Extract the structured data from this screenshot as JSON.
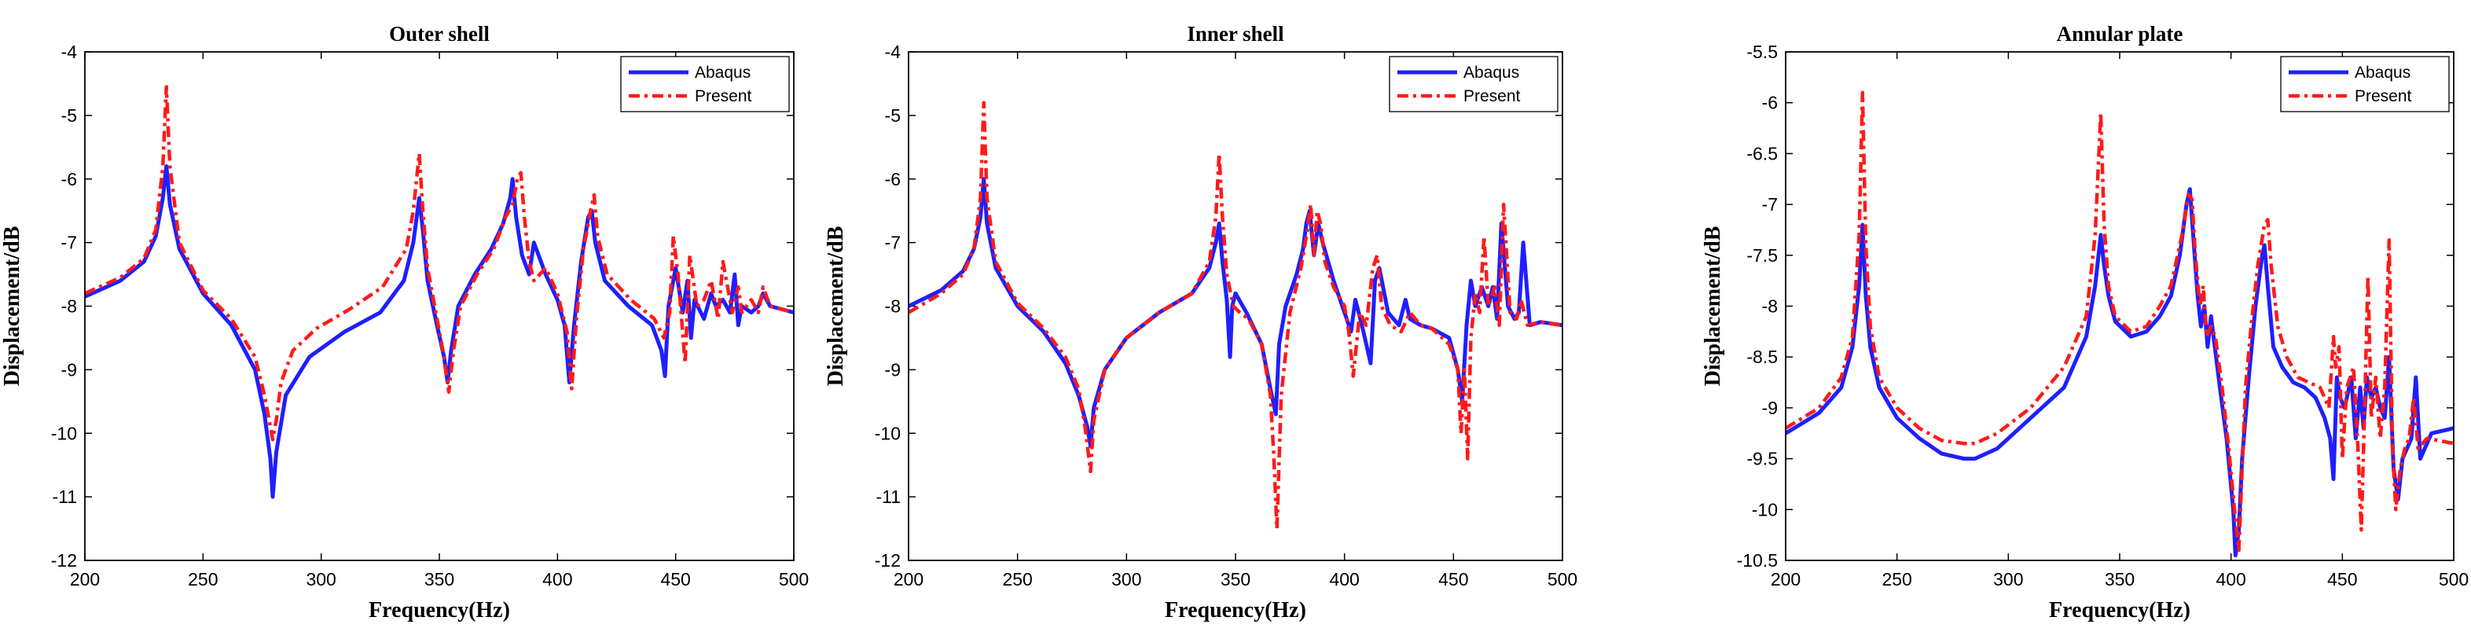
{
  "chart_data": [
    {
      "type": "line",
      "title": "Outer shell",
      "xlabel": "Frequency(Hz)",
      "ylabel": "Displacement/dB",
      "xlim": [
        200,
        500
      ],
      "ylim": [
        -12,
        -4
      ],
      "xticks": [
        200,
        250,
        300,
        350,
        400,
        450,
        500
      ],
      "yticks": [
        -4,
        -5,
        -6,
        -7,
        -8,
        -9,
        -10,
        -11,
        -12
      ],
      "legend_position": "top-right",
      "series": [
        {
          "name": "Abaqus",
          "color": "#1f1fff",
          "style": "solid",
          "x": [
            200,
            215,
            225,
            230,
            233,
            234.5,
            236,
            240,
            250,
            262,
            272,
            276,
            278.5,
            279.5,
            281,
            285,
            295,
            310,
            325,
            335,
            339,
            341.5,
            343,
            345,
            349,
            352,
            353.5,
            355,
            358,
            365,
            372,
            377,
            380,
            381,
            382.5,
            385,
            388,
            390,
            395,
            400,
            403,
            405,
            407,
            410,
            413,
            414.5,
            416,
            420,
            430,
            440,
            444,
            445.5,
            447,
            450,
            453,
            455,
            456.5,
            458,
            462,
            465,
            467,
            470,
            473,
            475,
            476.5,
            478,
            482,
            485,
            487,
            490,
            495,
            500
          ],
          "y": [
            -7.85,
            -7.6,
            -7.3,
            -6.9,
            -6.3,
            -5.8,
            -6.4,
            -7.1,
            -7.8,
            -8.3,
            -9.0,
            -9.7,
            -10.4,
            -11.0,
            -10.3,
            -9.4,
            -8.8,
            -8.4,
            -8.1,
            -7.6,
            -7.0,
            -6.3,
            -6.8,
            -7.6,
            -8.3,
            -8.8,
            -9.2,
            -8.7,
            -8.0,
            -7.5,
            -7.1,
            -6.7,
            -6.3,
            -6.0,
            -6.6,
            -7.2,
            -7.5,
            -7.0,
            -7.5,
            -7.9,
            -8.3,
            -9.2,
            -8.3,
            -7.3,
            -6.6,
            -6.5,
            -7.0,
            -7.6,
            -8.0,
            -8.3,
            -8.7,
            -9.1,
            -8.0,
            -7.4,
            -8.1,
            -7.6,
            -8.5,
            -7.9,
            -8.2,
            -7.8,
            -8.0,
            -7.9,
            -8.1,
            -7.5,
            -8.3,
            -8.0,
            -8.1,
            -8.0,
            -7.8,
            -8.0,
            -8.05,
            -8.1
          ]
        },
        {
          "name": "Present",
          "color": "#ff1a1a",
          "style": "dashdot",
          "x": [
            200,
            215,
            225,
            230,
            233,
            234.5,
            236,
            240,
            250,
            262,
            272,
            276,
            279.5,
            281,
            283,
            288,
            298,
            312,
            326,
            336,
            339,
            341.5,
            343,
            345,
            349,
            352,
            354,
            356,
            359,
            366,
            373,
            378,
            381,
            383,
            384.5,
            386,
            388,
            390,
            395,
            400,
            404,
            406,
            408,
            411,
            414,
            415.5,
            417,
            421,
            431,
            441,
            445,
            447.5,
            449,
            451,
            454,
            456,
            457.5,
            459,
            462,
            465,
            468,
            470,
            474,
            476.5,
            478,
            482,
            485,
            487,
            490,
            495,
            500
          ],
          "y": [
            -7.8,
            -7.55,
            -7.25,
            -6.8,
            -5.8,
            -4.55,
            -5.8,
            -7.0,
            -7.75,
            -8.2,
            -8.8,
            -9.4,
            -10.1,
            -9.8,
            -9.2,
            -8.7,
            -8.35,
            -8.05,
            -7.7,
            -7.1,
            -6.5,
            -5.6,
            -6.5,
            -7.4,
            -8.2,
            -8.8,
            -9.35,
            -8.7,
            -8.0,
            -7.5,
            -7.1,
            -6.6,
            -6.4,
            -6.0,
            -5.9,
            -6.6,
            -7.3,
            -7.6,
            -7.4,
            -7.8,
            -8.4,
            -9.3,
            -8.2,
            -7.1,
            -6.5,
            -6.25,
            -6.9,
            -7.5,
            -7.9,
            -8.2,
            -8.5,
            -8.1,
            -6.9,
            -7.5,
            -8.9,
            -7.2,
            -7.6,
            -8.0,
            -7.9,
            -7.6,
            -8.2,
            -7.3,
            -8.1,
            -7.7,
            -8.1,
            -7.9,
            -8.1,
            -7.7,
            -8.0,
            -8.05,
            -8.1
          ]
        }
      ]
    },
    {
      "type": "line",
      "title": "Inner shell",
      "xlabel": "Frequency(Hz)",
      "ylabel": "Displacement/dB",
      "xlim": [
        200,
        500
      ],
      "ylim": [
        -12,
        -4
      ],
      "xticks": [
        200,
        250,
        300,
        350,
        400,
        450,
        500
      ],
      "yticks": [
        -4,
        -5,
        -6,
        -7,
        -8,
        -9,
        -10,
        -11,
        -12
      ],
      "legend_position": "top-right",
      "series": [
        {
          "name": "Abaqus",
          "color": "#1f1fff",
          "style": "solid",
          "x": [
            200,
            215,
            225,
            230,
            233,
            234.5,
            236,
            240,
            250,
            262,
            272,
            278,
            282,
            283.5,
            285,
            290,
            300,
            315,
            330,
            338,
            341,
            342.5,
            344,
            346,
            347.5,
            348.5,
            350,
            355,
            362,
            366,
            368.5,
            370,
            373,
            378,
            381,
            382.5,
            384,
            386,
            388,
            390,
            395,
            400,
            403,
            405,
            408,
            410,
            412,
            414,
            416,
            420,
            425,
            428,
            430,
            435,
            440,
            448,
            452,
            454,
            456,
            458,
            460,
            463,
            466,
            468,
            470,
            472,
            475,
            478,
            480,
            482,
            485,
            490,
            500
          ],
          "y": [
            -8.0,
            -7.75,
            -7.45,
            -7.1,
            -6.6,
            -6.0,
            -6.7,
            -7.4,
            -8.0,
            -8.4,
            -8.9,
            -9.4,
            -9.9,
            -10.2,
            -9.6,
            -9.0,
            -8.5,
            -8.1,
            -7.8,
            -7.4,
            -7.0,
            -6.7,
            -7.3,
            -7.9,
            -8.8,
            -8.0,
            -7.8,
            -8.1,
            -8.6,
            -9.3,
            -9.7,
            -8.6,
            -8.0,
            -7.5,
            -7.1,
            -6.7,
            -6.5,
            -7.2,
            -6.7,
            -7.0,
            -7.6,
            -8.1,
            -8.4,
            -7.9,
            -8.3,
            -8.6,
            -8.9,
            -7.6,
            -7.4,
            -8.1,
            -8.3,
            -7.9,
            -8.2,
            -8.3,
            -8.35,
            -8.5,
            -9.0,
            -9.5,
            -8.3,
            -7.6,
            -8.0,
            -7.7,
            -8.0,
            -7.7,
            -8.2,
            -6.7,
            -8.0,
            -8.2,
            -8.1,
            -7.0,
            -8.3,
            -8.25,
            -8.3
          ]
        },
        {
          "name": "Present",
          "color": "#ff1a1a",
          "style": "dashdot",
          "x": [
            200,
            215,
            225,
            230,
            233,
            234.5,
            236,
            240,
            250,
            262,
            272,
            278,
            281,
            283.5,
            285,
            290,
            300,
            315,
            330,
            338,
            341,
            342.5,
            344,
            346,
            349,
            352,
            356,
            362,
            366,
            367.5,
            369,
            371,
            375,
            380,
            383,
            384.5,
            386,
            387.5,
            389,
            391,
            395,
            400,
            402,
            404,
            407,
            410,
            413,
            415,
            417,
            421,
            426,
            430,
            435,
            440,
            448,
            452,
            453.5,
            455,
            456.5,
            458,
            460,
            462,
            464,
            466,
            469,
            471,
            473,
            476,
            479,
            481,
            484,
            490,
            500
          ],
          "y": [
            -8.1,
            -7.8,
            -7.5,
            -7.1,
            -6.3,
            -4.8,
            -6.3,
            -7.3,
            -7.95,
            -8.35,
            -8.8,
            -9.3,
            -9.9,
            -10.6,
            -9.8,
            -9.0,
            -8.5,
            -8.1,
            -7.8,
            -7.3,
            -6.6,
            -5.6,
            -6.6,
            -7.5,
            -8.0,
            -8.1,
            -8.2,
            -8.6,
            -9.4,
            -10.3,
            -11.5,
            -9.4,
            -8.1,
            -7.4,
            -6.8,
            -6.4,
            -7.2,
            -6.5,
            -6.7,
            -7.3,
            -7.7,
            -8.0,
            -8.4,
            -9.1,
            -8.1,
            -8.3,
            -7.4,
            -7.2,
            -8.0,
            -8.3,
            -8.4,
            -8.1,
            -8.3,
            -8.35,
            -8.6,
            -9.0,
            -10.0,
            -9.0,
            -10.4,
            -8.5,
            -7.8,
            -8.1,
            -6.9,
            -8.0,
            -7.7,
            -8.3,
            -6.4,
            -8.1,
            -8.2,
            -7.9,
            -8.3,
            -8.25,
            -8.3
          ]
        }
      ]
    },
    {
      "type": "line",
      "title": "Annular plate",
      "xlabel": "Frequency(Hz)",
      "ylabel": "Displacement/dB",
      "xlim": [
        200,
        500
      ],
      "ylim": [
        -10.5,
        -5.5
      ],
      "xticks": [
        200,
        250,
        300,
        350,
        400,
        450,
        500
      ],
      "yticks": [
        -5.5,
        -6,
        -6.5,
        -7,
        -7.5,
        -8,
        -8.5,
        -9,
        -9.5,
        -10,
        -10.5
      ],
      "legend_position": "top-right",
      "series": [
        {
          "name": "Abaqus",
          "color": "#1f1fff",
          "style": "solid",
          "x": [
            200,
            215,
            225,
            230,
            233,
            234.5,
            236,
            238,
            242,
            250,
            260,
            270,
            280,
            285,
            295,
            310,
            325,
            335,
            339,
            341.5,
            343,
            345,
            348,
            355,
            362,
            368,
            373,
            377,
            380,
            381.5,
            383,
            385,
            386.5,
            388,
            389.5,
            391,
            395,
            398,
            401,
            402,
            403.5,
            405,
            408,
            411,
            414,
            415,
            416.5,
            419,
            423,
            428,
            433,
            438,
            442,
            444.5,
            446,
            447.5,
            449,
            451,
            454,
            456,
            458,
            459.5,
            461,
            463,
            465,
            467,
            469,
            471,
            473,
            475,
            477,
            479,
            481,
            483,
            485,
            490,
            500
          ],
          "y": [
            -9.25,
            -9.05,
            -8.8,
            -8.4,
            -7.8,
            -7.2,
            -7.9,
            -8.4,
            -8.8,
            -9.1,
            -9.3,
            -9.45,
            -9.5,
            -9.5,
            -9.4,
            -9.1,
            -8.8,
            -8.3,
            -7.8,
            -7.3,
            -7.6,
            -7.9,
            -8.15,
            -8.3,
            -8.25,
            -8.1,
            -7.9,
            -7.5,
            -7.0,
            -6.85,
            -7.3,
            -7.9,
            -8.2,
            -8.0,
            -8.4,
            -8.1,
            -8.8,
            -9.3,
            -10.0,
            -10.45,
            -10.2,
            -9.5,
            -8.7,
            -8.0,
            -7.5,
            -7.4,
            -7.8,
            -8.4,
            -8.6,
            -8.75,
            -8.8,
            -8.9,
            -9.1,
            -9.3,
            -9.7,
            -8.7,
            -8.9,
            -9.0,
            -8.7,
            -9.3,
            -8.8,
            -9.2,
            -8.7,
            -8.9,
            -8.8,
            -9.0,
            -9.1,
            -8.5,
            -9.6,
            -9.9,
            -9.5,
            -9.4,
            -9.3,
            -8.7,
            -9.5,
            -9.25,
            -9.2
          ]
        },
        {
          "name": "Present",
          "color": "#ff1a1a",
          "style": "dashdot",
          "x": [
            200,
            215,
            225,
            230,
            233,
            234.5,
            236,
            238,
            242,
            250,
            260,
            270,
            280,
            285,
            295,
            310,
            325,
            335,
            339,
            341.5,
            343,
            345,
            348,
            355,
            362,
            368,
            373,
            378,
            381,
            382.5,
            384,
            386,
            387.5,
            389,
            391,
            393,
            396,
            399,
            402,
            403.5,
            405,
            406.5,
            409,
            412,
            415,
            416.5,
            418,
            421,
            425,
            430,
            435,
            440,
            444,
            446,
            447,
            448.5,
            450,
            452,
            455,
            457,
            458.5,
            460,
            461.5,
            463,
            465,
            467,
            469,
            471,
            472.5,
            474,
            476,
            478,
            480,
            482,
            484,
            488,
            500
          ],
          "y": [
            -9.2,
            -9.0,
            -8.7,
            -8.3,
            -7.3,
            -5.9,
            -7.4,
            -8.2,
            -8.7,
            -9.0,
            -9.2,
            -9.32,
            -9.35,
            -9.35,
            -9.25,
            -9.0,
            -8.6,
            -8.1,
            -7.3,
            -6.1,
            -7.2,
            -7.8,
            -8.1,
            -8.25,
            -8.2,
            -8.0,
            -7.8,
            -7.3,
            -6.9,
            -6.95,
            -7.5,
            -8.0,
            -7.8,
            -8.3,
            -8.2,
            -8.3,
            -8.8,
            -9.4,
            -10.1,
            -10.4,
            -9.6,
            -8.8,
            -8.2,
            -7.6,
            -7.2,
            -7.15,
            -7.6,
            -8.2,
            -8.5,
            -8.7,
            -8.75,
            -8.8,
            -9.0,
            -8.3,
            -8.6,
            -8.4,
            -9.5,
            -8.8,
            -8.6,
            -9.4,
            -10.2,
            -9.0,
            -7.7,
            -9.1,
            -8.7,
            -9.3,
            -8.8,
            -7.35,
            -9.4,
            -10.0,
            -9.6,
            -9.4,
            -9.3,
            -8.9,
            -9.4,
            -9.3,
            -9.35
          ]
        }
      ]
    }
  ]
}
